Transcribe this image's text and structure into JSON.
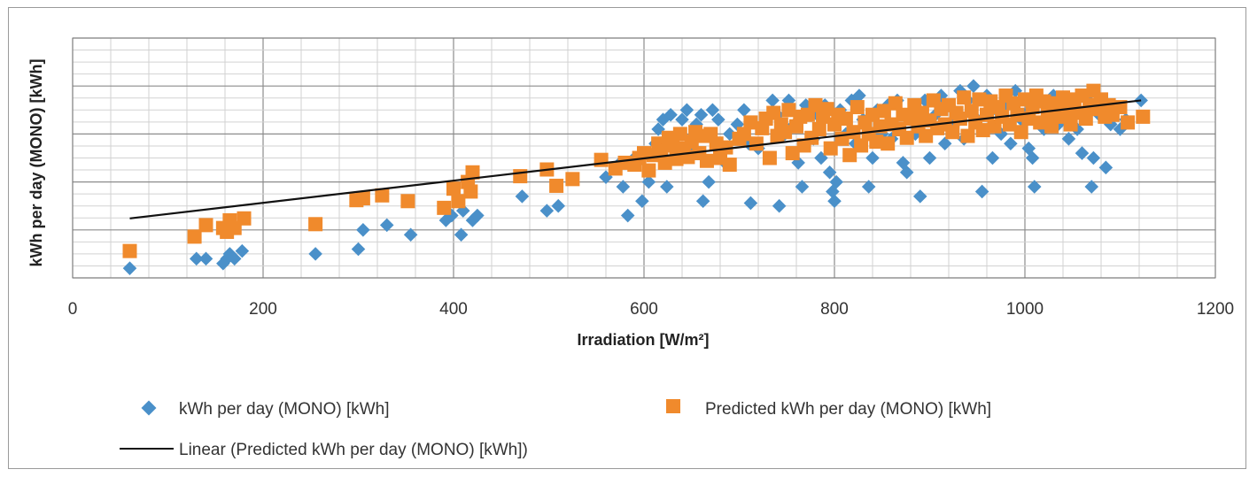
{
  "chart_data": {
    "type": "scatter",
    "xlabel": "Irradiation [W/m²]",
    "ylabel": "kWh per day (MONO) [kWh]",
    "xlim": [
      0,
      1200
    ],
    "ylim": [
      0,
      25
    ],
    "x_ticks": [
      "0",
      "200",
      "400",
      "600",
      "800",
      "1000",
      "1200"
    ],
    "x_major_step": 200,
    "x_minor_step": 40,
    "y_major_step": 5,
    "y_minor_step": 1.25,
    "grid": true,
    "legend_position": "bottom",
    "series": [
      {
        "name": "kWh per day (MONO) [kWh]",
        "marker": "diamond",
        "color": "#4a90c9",
        "points": [
          [
            60,
            1.0
          ],
          [
            130,
            2.0
          ],
          [
            140,
            2.0
          ],
          [
            158,
            1.5
          ],
          [
            162,
            2.0
          ],
          [
            165,
            2.5
          ],
          [
            170,
            2.0
          ],
          [
            178,
            2.8
          ],
          [
            255,
            2.5
          ],
          [
            300,
            3.0
          ],
          [
            305,
            5.0
          ],
          [
            330,
            5.5
          ],
          [
            355,
            4.5
          ],
          [
            392,
            6.0
          ],
          [
            398,
            6.5
          ],
          [
            408,
            4.5
          ],
          [
            410,
            7.0
          ],
          [
            420,
            6.0
          ],
          [
            425,
            6.5
          ],
          [
            472,
            8.5
          ],
          [
            498,
            7.0
          ],
          [
            510,
            7.5
          ],
          [
            560,
            10.5
          ],
          [
            575,
            12.0
          ],
          [
            578,
            9.5
          ],
          [
            583,
            6.5
          ],
          [
            590,
            12.5
          ],
          [
            598,
            8.0
          ],
          [
            605,
            10.0
          ],
          [
            610,
            13.0
          ],
          [
            612,
            14.0
          ],
          [
            615,
            15.5
          ],
          [
            620,
            16.5
          ],
          [
            624,
            9.5
          ],
          [
            628,
            17.0
          ],
          [
            632,
            14.0
          ],
          [
            636,
            12.5
          ],
          [
            640,
            16.5
          ],
          [
            645,
            17.5
          ],
          [
            650,
            13.5
          ],
          [
            655,
            16.0
          ],
          [
            660,
            17.0
          ],
          [
            662,
            8.0
          ],
          [
            668,
            10.0
          ],
          [
            672,
            17.5
          ],
          [
            678,
            16.5
          ],
          [
            685,
            12.0
          ],
          [
            690,
            15.0
          ],
          [
            698,
            16.0
          ],
          [
            705,
            17.5
          ],
          [
            710,
            14.0
          ],
          [
            712,
            7.8
          ],
          [
            720,
            13.5
          ],
          [
            728,
            16.5
          ],
          [
            735,
            18.5
          ],
          [
            740,
            17.0
          ],
          [
            742,
            7.5
          ],
          [
            748,
            15.0
          ],
          [
            752,
            18.5
          ],
          [
            758,
            16.0
          ],
          [
            762,
            12.0
          ],
          [
            766,
            9.5
          ],
          [
            770,
            18.0
          ],
          [
            778,
            14.5
          ],
          [
            782,
            17.0
          ],
          [
            786,
            12.5
          ],
          [
            790,
            18.0
          ],
          [
            795,
            11.0
          ],
          [
            798,
            9.0
          ],
          [
            800,
            8.0
          ],
          [
            802,
            10.0
          ],
          [
            806,
            17.5
          ],
          [
            812,
            15.0
          ],
          [
            818,
            18.5
          ],
          [
            822,
            14.0
          ],
          [
            826,
            19.0
          ],
          [
            830,
            16.5
          ],
          [
            836,
            9.5
          ],
          [
            840,
            12.5
          ],
          [
            845,
            17.5
          ],
          [
            850,
            15.0
          ],
          [
            856,
            18.0
          ],
          [
            860,
            14.5
          ],
          [
            866,
            18.5
          ],
          [
            872,
            12.0
          ],
          [
            876,
            11.0
          ],
          [
            880,
            17.0
          ],
          [
            885,
            15.0
          ],
          [
            890,
            8.5
          ],
          [
            895,
            18.5
          ],
          [
            900,
            12.5
          ],
          [
            906,
            17.0
          ],
          [
            912,
            19.0
          ],
          [
            916,
            14.0
          ],
          [
            920,
            18.0
          ],
          [
            926,
            16.0
          ],
          [
            932,
            19.5
          ],
          [
            936,
            14.5
          ],
          [
            940,
            18.5
          ],
          [
            946,
            20.0
          ],
          [
            950,
            16.5
          ],
          [
            955,
            9.0
          ],
          [
            960,
            19.0
          ],
          [
            966,
            12.5
          ],
          [
            970,
            17.5
          ],
          [
            975,
            15.0
          ],
          [
            980,
            18.0
          ],
          [
            985,
            14.0
          ],
          [
            990,
            19.5
          ],
          [
            996,
            16.5
          ],
          [
            1000,
            17.0
          ],
          [
            1004,
            13.5
          ],
          [
            1008,
            12.5
          ],
          [
            1010,
            9.5
          ],
          [
            1015,
            18.5
          ],
          [
            1020,
            15.5
          ],
          [
            1025,
            17.5
          ],
          [
            1030,
            19.0
          ],
          [
            1035,
            16.0
          ],
          [
            1040,
            18.0
          ],
          [
            1046,
            14.5
          ],
          [
            1050,
            17.0
          ],
          [
            1055,
            15.5
          ],
          [
            1060,
            13.0
          ],
          [
            1066,
            18.5
          ],
          [
            1070,
            9.5
          ],
          [
            1072,
            12.5
          ],
          [
            1078,
            17.0
          ],
          [
            1085,
            11.5
          ],
          [
            1090,
            16.0
          ],
          [
            1095,
            17.5
          ],
          [
            1100,
            15.5
          ],
          [
            1106,
            16.5
          ],
          [
            1122,
            18.5
          ]
        ]
      },
      {
        "name": "Predicted kWh per day (MONO) [kWh]",
        "marker": "square",
        "color": "#f08a2c",
        "points": [
          [
            60,
            2.8
          ],
          [
            128,
            4.3
          ],
          [
            140,
            5.5
          ],
          [
            158,
            5.2
          ],
          [
            162,
            4.8
          ],
          [
            165,
            6.0
          ],
          [
            170,
            5.2
          ],
          [
            180,
            6.2
          ],
          [
            255,
            5.6
          ],
          [
            298,
            8.1
          ],
          [
            305,
            8.3
          ],
          [
            325,
            8.6
          ],
          [
            352,
            8.0
          ],
          [
            390,
            7.3
          ],
          [
            400,
            9.3
          ],
          [
            405,
            8.0
          ],
          [
            415,
            10.0
          ],
          [
            418,
            9.0
          ],
          [
            420,
            11.0
          ],
          [
            470,
            10.6
          ],
          [
            498,
            11.3
          ],
          [
            508,
            9.6
          ],
          [
            525,
            10.3
          ],
          [
            555,
            12.3
          ],
          [
            570,
            11.4
          ],
          [
            580,
            12.0
          ],
          [
            590,
            11.8
          ],
          [
            595,
            12.5
          ],
          [
            600,
            13.0
          ],
          [
            605,
            11.2
          ],
          [
            610,
            12.8
          ],
          [
            615,
            14.0
          ],
          [
            618,
            13.2
          ],
          [
            622,
            12.0
          ],
          [
            626,
            14.6
          ],
          [
            630,
            13.8
          ],
          [
            634,
            12.4
          ],
          [
            638,
            15.0
          ],
          [
            642,
            13.5
          ],
          [
            646,
            12.6
          ],
          [
            650,
            14.2
          ],
          [
            654,
            15.2
          ],
          [
            658,
            13.0
          ],
          [
            662,
            14.8
          ],
          [
            666,
            12.2
          ],
          [
            670,
            15.0
          ],
          [
            676,
            14.0
          ],
          [
            680,
            12.5
          ],
          [
            686,
            13.6
          ],
          [
            690,
            11.8
          ],
          [
            700,
            14.5
          ],
          [
            705,
            15.0
          ],
          [
            712,
            16.2
          ],
          [
            718,
            14.0
          ],
          [
            724,
            15.6
          ],
          [
            728,
            16.6
          ],
          [
            732,
            12.5
          ],
          [
            736,
            17.2
          ],
          [
            740,
            14.8
          ],
          [
            744,
            16.0
          ],
          [
            748,
            15.2
          ],
          [
            752,
            17.5
          ],
          [
            756,
            13.0
          ],
          [
            760,
            15.8
          ],
          [
            764,
            16.8
          ],
          [
            768,
            13.8
          ],
          [
            772,
            17.0
          ],
          [
            776,
            14.6
          ],
          [
            780,
            18.0
          ],
          [
            784,
            15.5
          ],
          [
            788,
            16.8
          ],
          [
            792,
            17.6
          ],
          [
            796,
            13.5
          ],
          [
            800,
            16.0
          ],
          [
            804,
            17.0
          ],
          [
            808,
            14.5
          ],
          [
            812,
            16.6
          ],
          [
            816,
            12.8
          ],
          [
            820,
            15.2
          ],
          [
            824,
            17.8
          ],
          [
            828,
            13.8
          ],
          [
            832,
            16.2
          ],
          [
            836,
            15.0
          ],
          [
            840,
            17.0
          ],
          [
            844,
            14.2
          ],
          [
            848,
            15.8
          ],
          [
            852,
            17.4
          ],
          [
            856,
            14.0
          ],
          [
            860,
            16.0
          ],
          [
            864,
            18.2
          ],
          [
            868,
            15.5
          ],
          [
            872,
            17.0
          ],
          [
            876,
            14.6
          ],
          [
            880,
            16.6
          ],
          [
            884,
            18.0
          ],
          [
            888,
            15.8
          ],
          [
            892,
            17.2
          ],
          [
            896,
            14.8
          ],
          [
            900,
            16.4
          ],
          [
            904,
            18.5
          ],
          [
            908,
            15.6
          ],
          [
            912,
            17.6
          ],
          [
            916,
            16.0
          ],
          [
            920,
            18.0
          ],
          [
            924,
            15.2
          ],
          [
            928,
            17.2
          ],
          [
            932,
            16.6
          ],
          [
            936,
            18.8
          ],
          [
            940,
            14.8
          ],
          [
            944,
            17.4
          ],
          [
            948,
            16.2
          ],
          [
            952,
            18.6
          ],
          [
            956,
            15.4
          ],
          [
            960,
            17.0
          ],
          [
            964,
            18.4
          ],
          [
            968,
            15.8
          ],
          [
            972,
            17.8
          ],
          [
            976,
            16.8
          ],
          [
            980,
            19.0
          ],
          [
            984,
            16.0
          ],
          [
            988,
            18.2
          ],
          [
            992,
            17.0
          ],
          [
            996,
            15.2
          ],
          [
            1000,
            18.6
          ],
          [
            1004,
            16.6
          ],
          [
            1008,
            17.8
          ],
          [
            1012,
            19.0
          ],
          [
            1016,
            16.2
          ],
          [
            1020,
            18.4
          ],
          [
            1024,
            17.0
          ],
          [
            1028,
            15.8
          ],
          [
            1032,
            18.2
          ],
          [
            1036,
            16.8
          ],
          [
            1040,
            18.8
          ],
          [
            1044,
            17.4
          ],
          [
            1048,
            16.0
          ],
          [
            1052,
            18.6
          ],
          [
            1056,
            17.2
          ],
          [
            1060,
            19.0
          ],
          [
            1064,
            16.6
          ],
          [
            1068,
            18.0
          ],
          [
            1072,
            19.5
          ],
          [
            1076,
            17.6
          ],
          [
            1080,
            18.6
          ],
          [
            1084,
            16.8
          ],
          [
            1088,
            18.0
          ],
          [
            1092,
            17.0
          ],
          [
            1100,
            17.8
          ],
          [
            1108,
            16.2
          ],
          [
            1124,
            16.8
          ]
        ]
      }
    ],
    "trendline": {
      "name": "Linear (Predicted kWh per day (MONO) [kWh])",
      "color": "#111111",
      "x": [
        60,
        1122
      ],
      "y": [
        6.2,
        18.5
      ]
    }
  }
}
